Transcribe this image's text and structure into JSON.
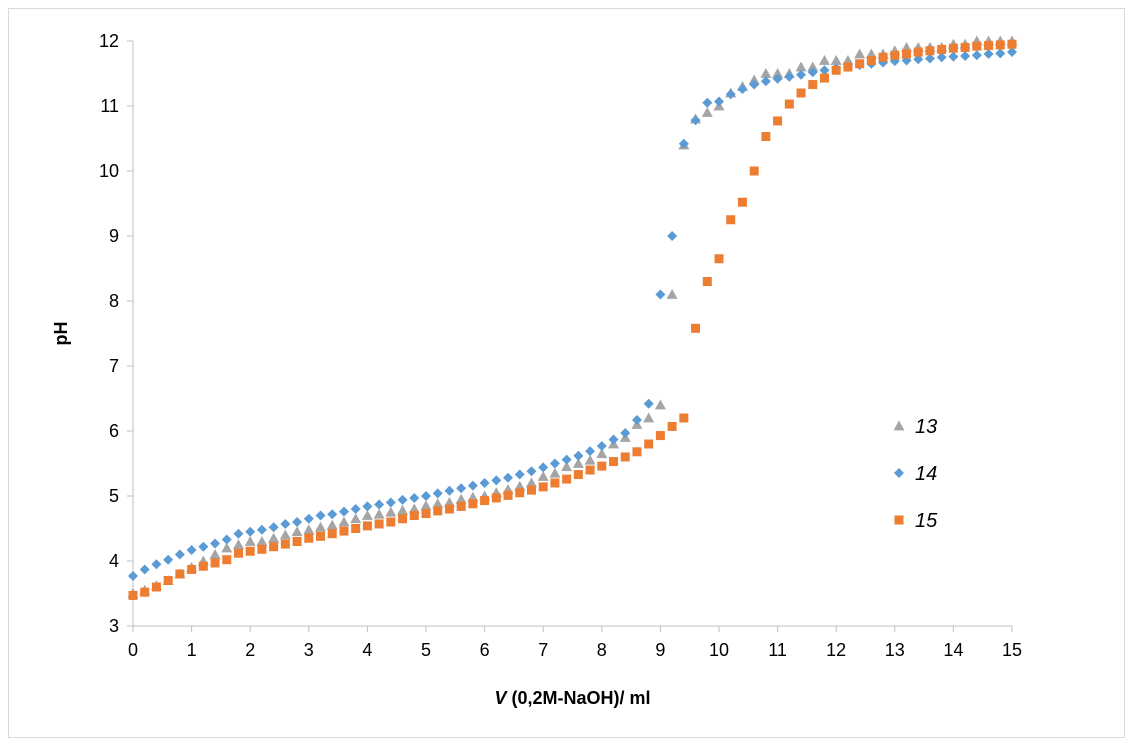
{
  "chart_data": {
    "type": "scatter",
    "xlabel_var": "V",
    "xlabel_rest": " (0,2M-NaOH)/ ml",
    "ylabel": "pH",
    "xlim": [
      0,
      15
    ],
    "ylim": [
      3,
      12
    ],
    "xticks": [
      0,
      1,
      2,
      3,
      4,
      5,
      6,
      7,
      8,
      9,
      10,
      11,
      12,
      13,
      14,
      15
    ],
    "yticks": [
      3,
      4,
      5,
      6,
      7,
      8,
      9,
      10,
      11,
      12
    ],
    "grid": false,
    "legend_position": "right",
    "series": [
      {
        "name": "13",
        "marker": "triangle",
        "color": "#a5a5a5",
        "x": [
          0,
          0.2,
          0.4,
          0.6,
          0.8,
          1,
          1.2,
          1.4,
          1.6,
          1.8,
          2,
          2.2,
          2.4,
          2.6,
          2.8,
          3,
          3.2,
          3.4,
          3.6,
          3.8,
          4,
          4.2,
          4.4,
          4.6,
          4.8,
          5,
          5.2,
          5.4,
          5.6,
          5.8,
          6,
          6.2,
          6.4,
          6.6,
          6.8,
          7,
          7.2,
          7.4,
          7.6,
          7.8,
          8,
          8.2,
          8.4,
          8.6,
          8.8,
          9,
          9.2,
          9.4,
          9.6,
          9.8,
          10,
          10.2,
          10.4,
          10.6,
          10.8,
          11,
          11.2,
          11.4,
          11.6,
          11.8,
          12,
          12.2,
          12.4,
          12.6,
          12.8,
          13,
          13.2,
          13.4,
          13.6,
          13.8,
          14,
          14.2,
          14.4,
          14.6,
          14.8,
          15
        ],
        "y": [
          3.5,
          3.55,
          3.62,
          3.7,
          3.8,
          3.9,
          4.0,
          4.1,
          4.2,
          4.25,
          4.3,
          4.3,
          4.35,
          4.4,
          4.45,
          4.48,
          4.52,
          4.55,
          4.6,
          4.65,
          4.7,
          4.72,
          4.75,
          4.78,
          4.8,
          4.85,
          4.88,
          4.9,
          4.95,
          4.98,
          5.0,
          5.05,
          5.1,
          5.15,
          5.2,
          5.3,
          5.35,
          5.45,
          5.5,
          5.55,
          5.65,
          5.8,
          5.9,
          6.1,
          6.2,
          6.4,
          8.1,
          10.4,
          10.8,
          10.9,
          11.0,
          11.2,
          11.3,
          11.4,
          11.5,
          11.5,
          11.5,
          11.6,
          11.6,
          11.7,
          11.7,
          11.7,
          11.8,
          11.8,
          11.8,
          11.85,
          11.9,
          11.9,
          11.9,
          11.9,
          11.95,
          11.95,
          12.0,
          12.0,
          12.0,
          12.0
        ],
        "x2": [
          9.2
        ],
        "y2": [
          8.1
        ]
      },
      {
        "name": "14",
        "marker": "diamond",
        "color": "#5b9bd5",
        "x": [
          0,
          0.2,
          0.4,
          0.6,
          0.8,
          1,
          1.2,
          1.4,
          1.6,
          1.8,
          2,
          2.2,
          2.4,
          2.6,
          2.8,
          3,
          3.2,
          3.4,
          3.6,
          3.8,
          4,
          4.2,
          4.4,
          4.6,
          4.8,
          5,
          5.2,
          5.4,
          5.6,
          5.8,
          6,
          6.2,
          6.4,
          6.6,
          6.8,
          7,
          7.2,
          7.4,
          7.6,
          7.8,
          8,
          8.2,
          8.4,
          8.6,
          8.8,
          9,
          9.2,
          9.4,
          9.6,
          9.8,
          10,
          10.2,
          10.4,
          10.6,
          10.8,
          11,
          11.2,
          11.4,
          11.6,
          11.8,
          12,
          12.2,
          12.4,
          12.6,
          12.8,
          13,
          13.2,
          13.4,
          13.6,
          13.8,
          14,
          14.2,
          14.4,
          14.6,
          14.8,
          15
        ],
        "y": [
          3.77,
          3.87,
          3.95,
          4.02,
          4.1,
          4.17,
          4.22,
          4.27,
          4.33,
          4.42,
          4.45,
          4.48,
          4.52,
          4.57,
          4.6,
          4.65,
          4.7,
          4.72,
          4.76,
          4.8,
          4.84,
          4.87,
          4.9,
          4.94,
          4.97,
          5.0,
          5.04,
          5.08,
          5.12,
          5.16,
          5.2,
          5.24,
          5.28,
          5.33,
          5.38,
          5.44,
          5.5,
          5.56,
          5.62,
          5.69,
          5.77,
          5.87,
          5.97,
          6.17,
          6.42,
          8.1,
          9.0,
          10.42,
          10.78,
          11.05,
          11.07,
          11.18,
          11.26,
          11.33,
          11.38,
          11.42,
          11.45,
          11.48,
          11.52,
          11.55,
          11.58,
          11.6,
          11.63,
          11.65,
          11.67,
          11.69,
          11.7,
          11.72,
          11.73,
          11.75,
          11.76,
          11.77,
          11.78,
          11.8,
          11.81,
          11.83
        ]
      },
      {
        "name": "15",
        "marker": "square",
        "color": "#ed7d31",
        "x": [
          0,
          0.2,
          0.4,
          0.6,
          0.8,
          1,
          1.2,
          1.4,
          1.6,
          1.8,
          2,
          2.2,
          2.4,
          2.6,
          2.8,
          3,
          3.2,
          3.4,
          3.6,
          3.8,
          4,
          4.2,
          4.4,
          4.6,
          4.8,
          5,
          5.2,
          5.4,
          5.6,
          5.8,
          6,
          6.2,
          6.4,
          6.6,
          6.8,
          7,
          7.2,
          7.4,
          7.6,
          7.8,
          8,
          8.2,
          8.4,
          8.6,
          8.8,
          9,
          9.2,
          9.4,
          9.6,
          9.8,
          10,
          10.2,
          10.4,
          10.6,
          10.8,
          11,
          11.2,
          11.4,
          11.6,
          11.8,
          12,
          12.2,
          12.4,
          12.6,
          12.8,
          13,
          13.2,
          13.4,
          13.6,
          13.8,
          14,
          14.2,
          14.4,
          14.6,
          14.8,
          15
        ],
        "y": [
          3.47,
          3.52,
          3.6,
          3.7,
          3.8,
          3.87,
          3.92,
          3.97,
          4.02,
          4.12,
          4.15,
          4.18,
          4.22,
          4.26,
          4.3,
          4.35,
          4.38,
          4.42,
          4.46,
          4.5,
          4.54,
          4.57,
          4.6,
          4.65,
          4.7,
          4.73,
          4.77,
          4.8,
          4.84,
          4.88,
          4.93,
          4.97,
          5.01,
          5.05,
          5.09,
          5.14,
          5.2,
          5.26,
          5.33,
          5.4,
          5.46,
          5.53,
          5.6,
          5.68,
          5.8,
          5.93,
          6.07,
          6.2,
          7.58,
          8.3,
          8.65,
          9.25,
          9.52,
          10.0,
          10.53,
          10.77,
          11.03,
          11.2,
          11.33,
          11.43,
          11.55,
          11.6,
          11.65,
          11.7,
          11.75,
          11.78,
          11.8,
          11.83,
          11.85,
          11.87,
          11.89,
          11.9,
          11.92,
          11.93,
          11.94,
          11.95
        ],
        "shift": true
      }
    ]
  }
}
